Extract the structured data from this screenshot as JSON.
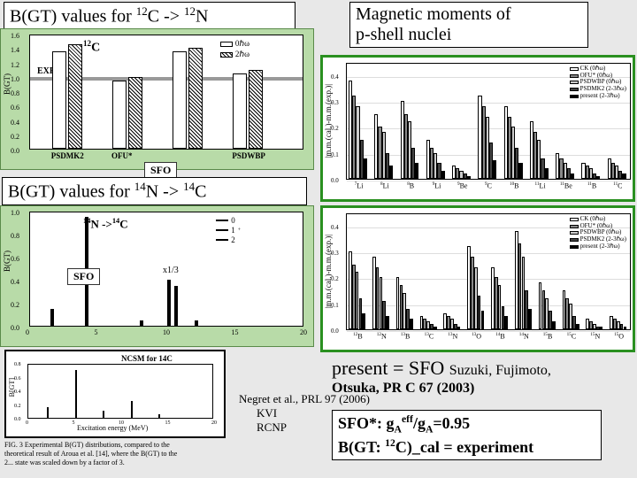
{
  "title_left_top": "B(GT) values for ",
  "title_left_top_nuclide1": "12",
  "title_left_top_sym1": "C -> ",
  "title_left_top_nuclide2": "12",
  "title_left_top_sym2": "N",
  "title_right_top_l1": "Magnetic moments of",
  "title_right_top_l2": "p-shell nuclei",
  "title_left_mid": "B(GT) values for ",
  "title_left_mid_n1": "14",
  "title_left_mid_s1": "N -> ",
  "title_left_mid_n2": "14",
  "title_left_mid_s2": "C",
  "sfo_label": "SFO",
  "chart1": {
    "ylabel": "B(GT)",
    "note": "12C",
    "legend": [
      "0ℏω",
      "2ℏω"
    ],
    "exp_label": "EXP",
    "yTicks": [
      0.0,
      0.2,
      0.4,
      0.6,
      0.8,
      1.0,
      1.2,
      1.4,
      1.6
    ],
    "yMax": 1.6,
    "xLabels": [
      "PSDMK2",
      "OFU*",
      "",
      "PSDWBP"
    ],
    "groups": [
      {
        "x": 0.08,
        "bars": [
          1.35,
          1.45
        ]
      },
      {
        "x": 0.3,
        "bars": [
          0.95,
          1.0
        ]
      },
      {
        "x": 0.52,
        "bars": [
          1.35,
          1.4
        ]
      },
      {
        "x": 0.74,
        "bars": [
          1.05,
          1.1
        ]
      }
    ],
    "exp_band": 1.0,
    "bg": "#b8dba8",
    "barFill": "#ffffff",
    "barStroke": "#000000"
  },
  "chart2": {
    "ylabel": "B(GT)",
    "note": "14N ->14C",
    "legend_marks": [
      "0",
      "1+",
      "2"
    ],
    "subnote": "x1/3",
    "yTicks": [
      0.0,
      0.2,
      0.4,
      0.6,
      0.8,
      1.0
    ],
    "yMax": 1.0,
    "xTicks": [
      0,
      5,
      10,
      15,
      20
    ],
    "bars": [
      {
        "x": 1.5,
        "h": 0.15
      },
      {
        "x": 4,
        "h": 0.95
      },
      {
        "x": 8,
        "h": 0.05
      },
      {
        "x": 10,
        "h": 0.4
      },
      {
        "x": 10.5,
        "h": 0.35
      },
      {
        "x": 12,
        "h": 0.05
      }
    ],
    "bg": "#b8dba8"
  },
  "mm_top": {
    "ylabel": "|m.m.(cal.)-m.m.(exp.)|",
    "yTicks": [
      0,
      0.1,
      0.2,
      0.3,
      0.4
    ],
    "yMax": 0.45,
    "legend": [
      "CK (0ℏω)",
      "OFU* (0ℏω)",
      "PSDWBP (0ℏω)",
      "PSDMK2 (2-3ℏω)",
      "present (2-3ℏω)"
    ],
    "legend_fills": [
      "#ffffff",
      "#888888",
      "#cccccc",
      "#444444",
      "#000000"
    ],
    "xLabels": [
      "7Li",
      "8Li",
      "8B",
      "9Li",
      "9Be",
      "9C",
      "10B",
      "11Li",
      "11Be",
      "11B",
      "11C"
    ],
    "series": [
      [
        0.38,
        0.25,
        0.3,
        0.15,
        0.05,
        0.32,
        0.28,
        0.22,
        0.1,
        0.06,
        0.08
      ],
      [
        0.32,
        0.2,
        0.25,
        0.12,
        0.04,
        0.28,
        0.24,
        0.18,
        0.08,
        0.05,
        0.06
      ],
      [
        0.28,
        0.18,
        0.22,
        0.1,
        0.03,
        0.24,
        0.2,
        0.15,
        0.06,
        0.04,
        0.05
      ],
      [
        0.15,
        0.1,
        0.12,
        0.06,
        0.02,
        0.14,
        0.12,
        0.08,
        0.04,
        0.02,
        0.03
      ],
      [
        0.08,
        0.05,
        0.06,
        0.03,
        0.01,
        0.07,
        0.06,
        0.04,
        0.02,
        0.01,
        0.02
      ]
    ],
    "border": "#2a9020"
  },
  "mm_bot": {
    "ylabel": "|m.m.(cal.)-m.m.(exp.)|",
    "yTicks": [
      0,
      0.1,
      0.2,
      0.3,
      0.4
    ],
    "yMax": 0.45,
    "legend": [
      "CK (0ℏω)",
      "OFU* (0ℏω)",
      "PSDWBP (0ℏω)",
      "PSDMK2 (2-3ℏω)",
      "present (2-3ℏω)"
    ],
    "legend_fills": [
      "#ffffff",
      "#888888",
      "#cccccc",
      "#444444",
      "#000000"
    ],
    "xLabels": [
      "12B",
      "12N",
      "13B",
      "13C",
      "13N",
      "13O",
      "14B",
      "14N",
      "15B",
      "15C",
      "15N",
      "15O"
    ],
    "series": [
      [
        0.3,
        0.28,
        0.2,
        0.05,
        0.06,
        0.32,
        0.24,
        0.38,
        0.18,
        0.15,
        0.04,
        0.05
      ],
      [
        0.25,
        0.24,
        0.17,
        0.04,
        0.05,
        0.28,
        0.2,
        0.33,
        0.15,
        0.12,
        0.03,
        0.04
      ],
      [
        0.22,
        0.2,
        0.14,
        0.03,
        0.04,
        0.24,
        0.17,
        0.28,
        0.12,
        0.1,
        0.02,
        0.03
      ],
      [
        0.12,
        0.11,
        0.08,
        0.02,
        0.02,
        0.13,
        0.09,
        0.15,
        0.07,
        0.05,
        0.01,
        0.02
      ],
      [
        0.06,
        0.05,
        0.04,
        0.01,
        0.01,
        0.07,
        0.05,
        0.08,
        0.03,
        0.02,
        0.01,
        0.01
      ]
    ],
    "border": "#2a9020"
  },
  "ncsm": {
    "title": "NCSM for 14C",
    "ylabel": "B[GT]",
    "xlabel": "Excitation energy (MeV)",
    "yTicks": [
      0.0,
      0.2,
      0.4,
      0.6,
      0.8
    ],
    "xTicks": [
      0,
      5,
      10,
      15,
      20
    ],
    "caption_l1": "FIG. 3  Experimental B(GT) distributions, compared to the",
    "caption_l2": "theoretical result of Aroua et al. [14], where the B(GT) to the",
    "caption_l3": "2... state was scaled down by a factor of 3."
  },
  "negret": "Negret et al., PRL 97 (2006)",
  "kvi": "KVI",
  "rcnp": "RCNP",
  "present_line": "present = SFO",
  "present_ref": "Suzuki, Fujimoto,",
  "otsuka": "Otsuka, PR C 67 (2003)",
  "sfo_box_l1a": "SFO*:  g",
  "sfo_box_l1b": "A",
  "sfo_box_l1c": "eff",
  "sfo_box_l1d": "/g",
  "sfo_box_l1e": "A",
  "sfo_box_l1f": "=0.95",
  "sfo_box_l2a": "B(GT: ",
  "sfo_box_l2b": "12",
  "sfo_box_l2c": "C)_cal = experiment"
}
